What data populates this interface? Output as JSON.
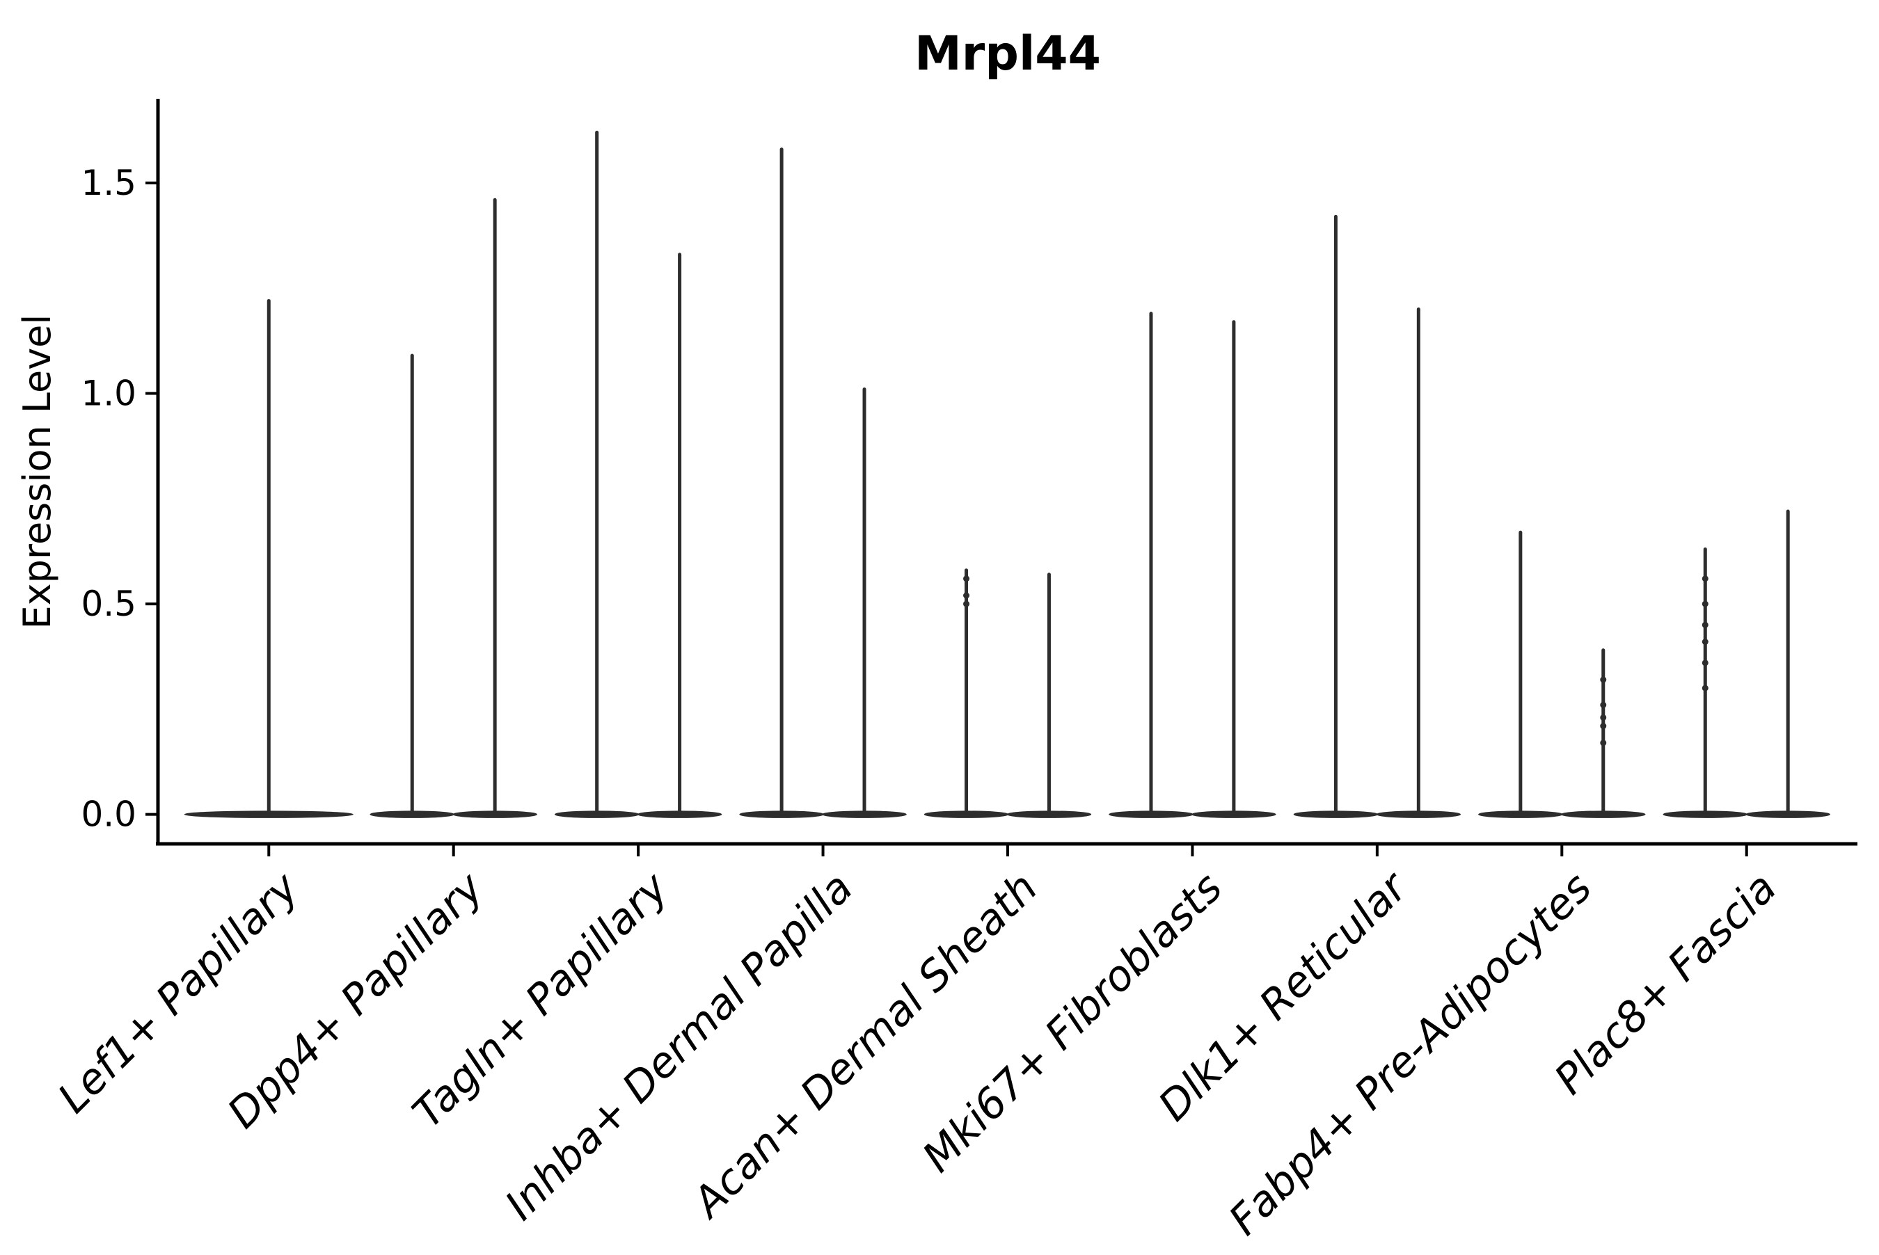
{
  "chart_data": {
    "type": "violin",
    "title": "Mrpl44",
    "ylabel": "Expression Level",
    "xlabel": "",
    "grid": false,
    "legend": "none",
    "ylim": [
      -0.07,
      1.7
    ],
    "ytick_values": [
      0.0,
      0.5,
      1.0,
      1.5
    ],
    "ytick_labels": [
      "0.0",
      "0.5",
      "1.0",
      "1.5"
    ],
    "violin_color": "#2d2d2d",
    "axis_color": "#000000",
    "categories": [
      {
        "label": "Lef1+ Papillary",
        "violin_max": [
          1.22
        ],
        "points": [
          [],
          []
        ]
      },
      {
        "label": "Dpp4+ Papillary",
        "violin_max": [
          1.09,
          1.46
        ],
        "points": [
          [],
          []
        ]
      },
      {
        "label": "Tagln+ Papillary",
        "violin_max": [
          1.62,
          1.33
        ],
        "points": [
          [],
          []
        ]
      },
      {
        "label": "Inhba+ Dermal Papilla",
        "violin_max": [
          1.58,
          1.01
        ],
        "points": [
          [],
          []
        ]
      },
      {
        "label": "Acan+ Dermal Sheath",
        "violin_max": [
          0.58,
          0.57
        ],
        "points": [
          [
            0.56,
            0.52,
            0.5
          ],
          []
        ]
      },
      {
        "label": "Mki67+ Fibroblasts",
        "violin_max": [
          1.19,
          1.17
        ],
        "points": [
          [],
          []
        ]
      },
      {
        "label": "Dlk1+ Reticular",
        "violin_max": [
          1.42,
          1.2
        ],
        "points": [
          [],
          []
        ]
      },
      {
        "label": "Fabp4+ Pre-Adipocytes",
        "violin_max": [
          0.67,
          0.39
        ],
        "points": [
          [],
          [
            0.32,
            0.26,
            0.23,
            0.21,
            0.17
          ]
        ]
      },
      {
        "label": "Plac8+ Fascia",
        "violin_max": [
          0.63,
          0.72
        ],
        "points": [
          [
            0.56,
            0.5,
            0.45,
            0.41,
            0.36,
            0.3
          ],
          []
        ]
      }
    ]
  }
}
